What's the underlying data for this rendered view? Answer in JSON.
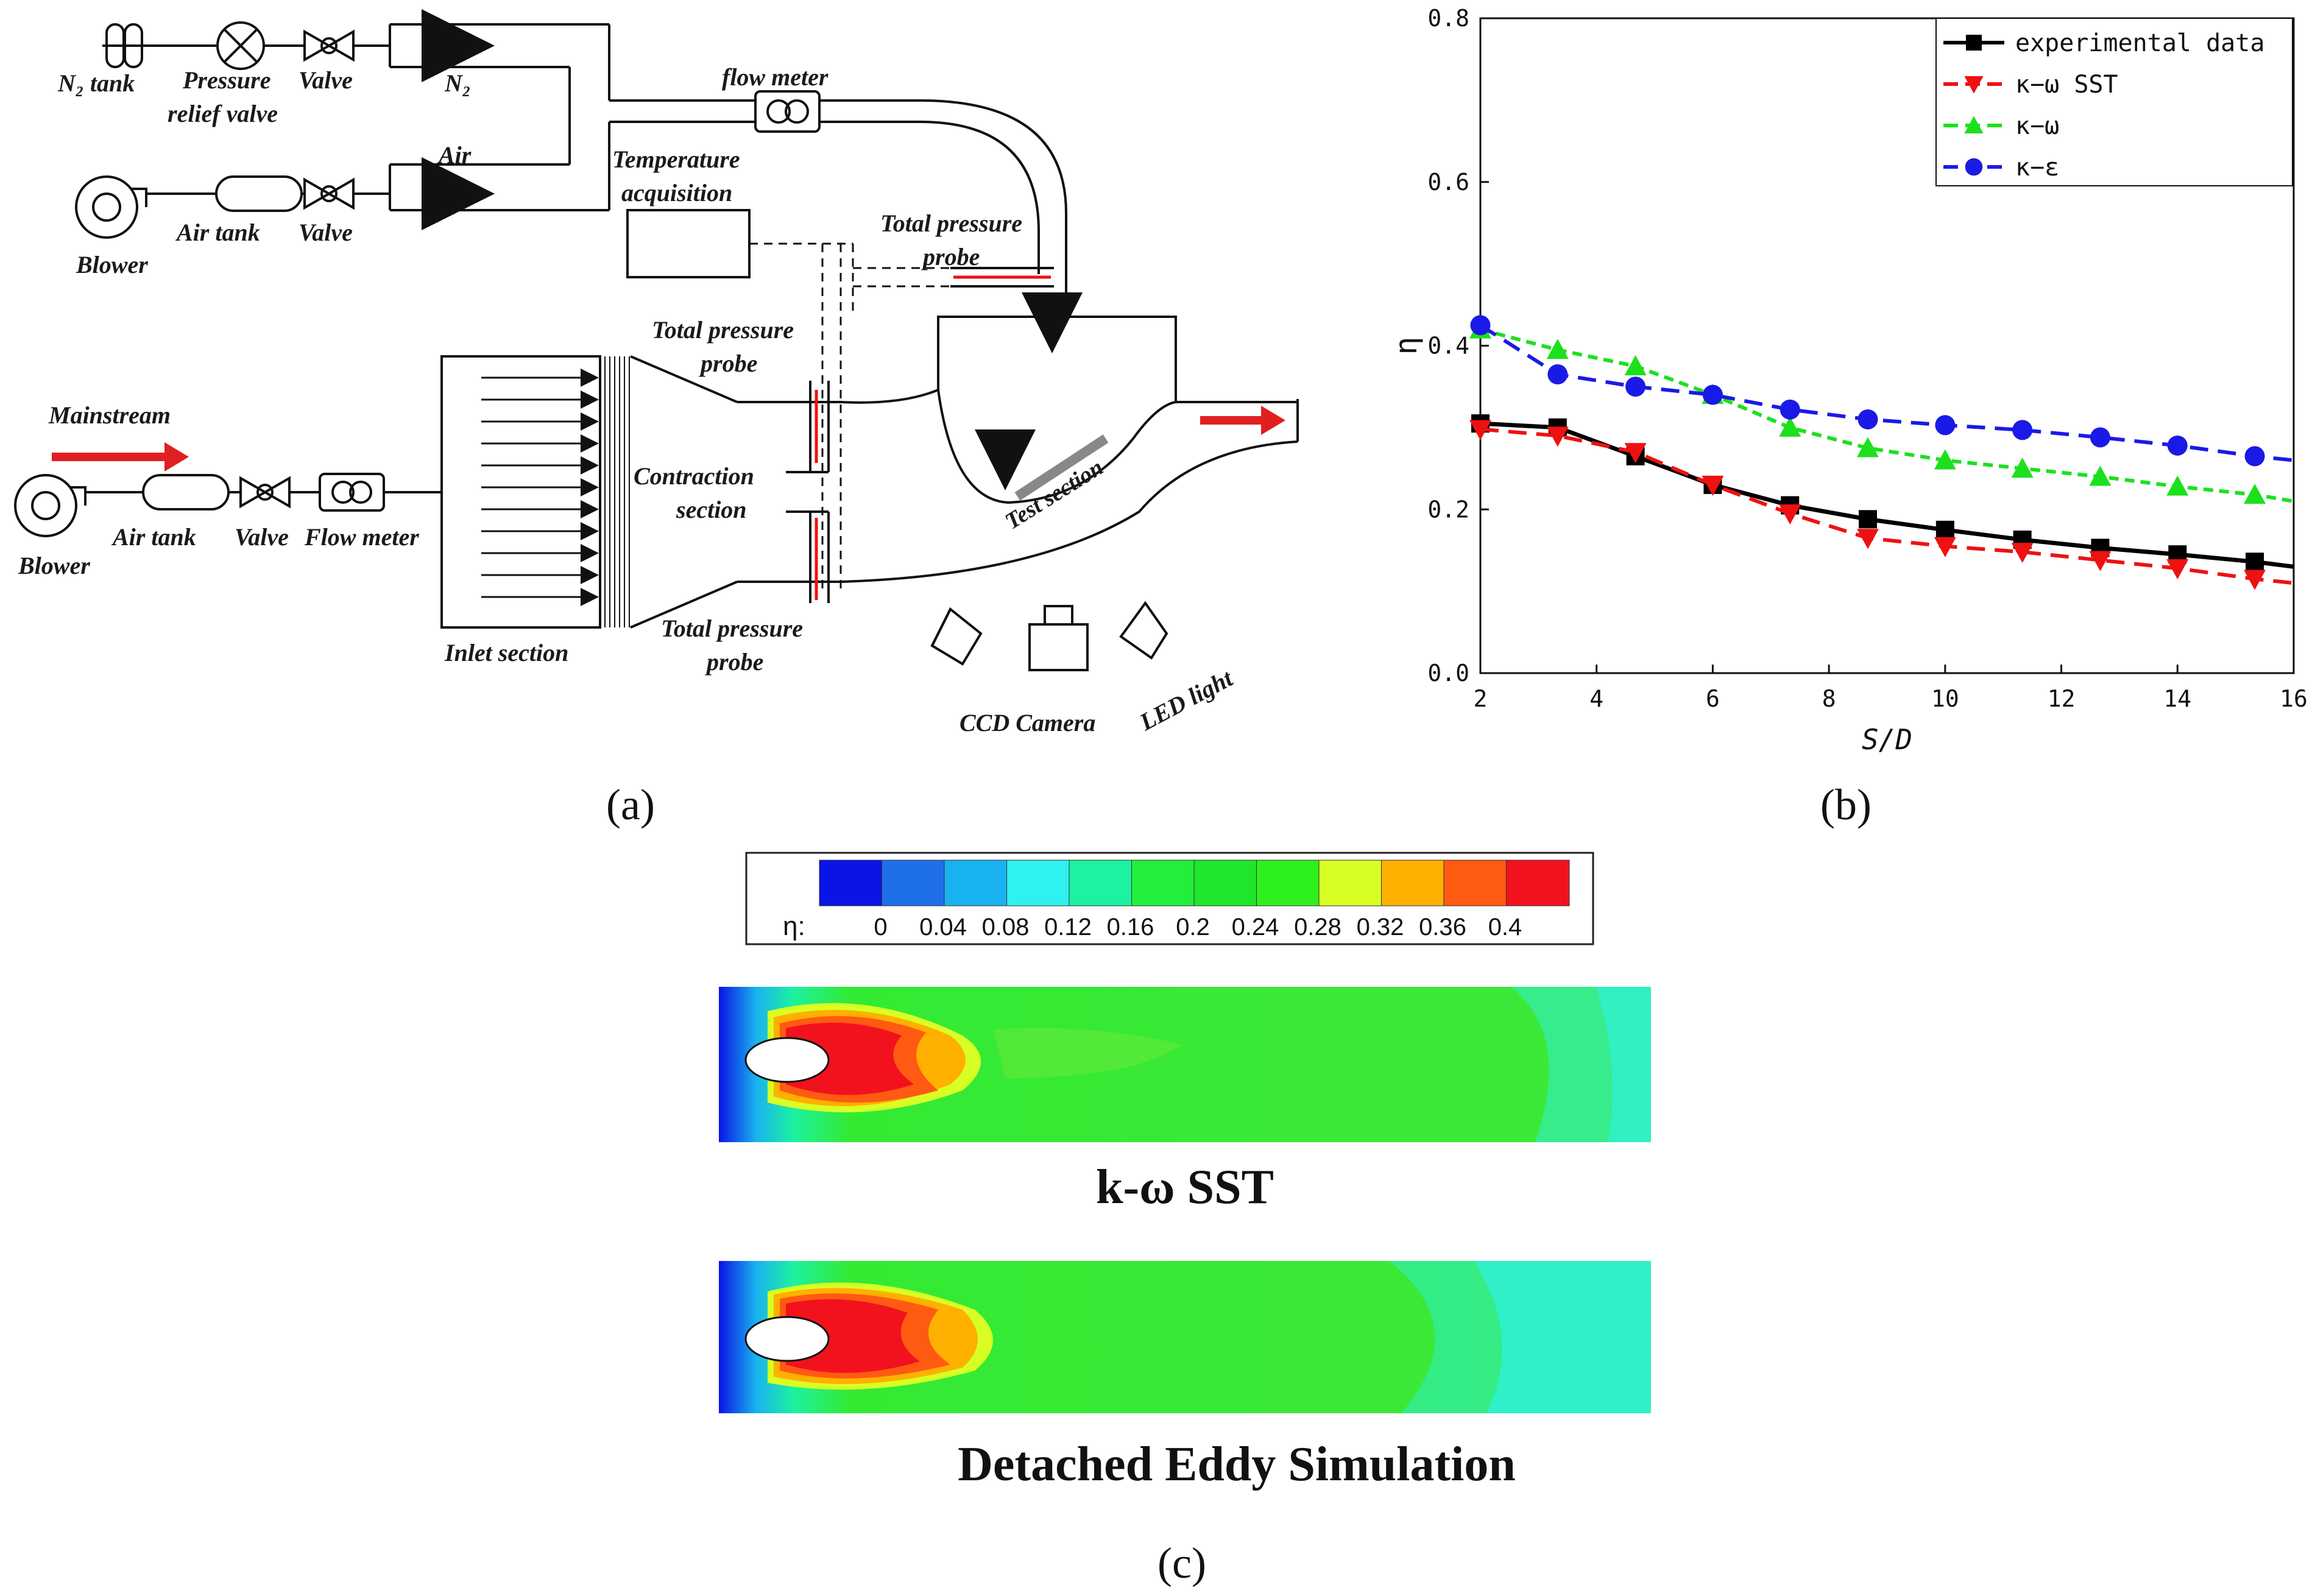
{
  "panel_a": {
    "caption": "(a)",
    "labels": {
      "n2_tank": "N₂ tank",
      "pressure_relief_1": "Pressure",
      "pressure_relief_2": "relief valve",
      "valve": "Valve",
      "n2": "N₂",
      "air": "Air",
      "flow_meter_top": "flow meter",
      "air_tank": "Air tank",
      "blower": "Blower",
      "temp_1": "Temperature",
      "temp_2": "acquisition",
      "tpp_top_1": "Total pressure",
      "tpp_top_2": "probe",
      "tpp_mid_1": "Total pressure",
      "tpp_mid_2": "probe",
      "tpp_bot_1": "Total pressure",
      "tpp_bot_2": "probe",
      "mainstream": "Mainstream",
      "flow_meter": "Flow meter",
      "contraction_1": "Contraction",
      "contraction_2": "section",
      "test_section": "Test section",
      "inlet_section": "Inlet section",
      "ccd_camera": "CCD Camera",
      "led_light": "LED light"
    }
  },
  "panel_b": {
    "caption": "(b)"
  },
  "panel_c": {
    "caption": "(c)",
    "colorbar_label": "η:",
    "colorbar_ticks": [
      "0",
      "0.04",
      "0.08",
      "0.12",
      "0.16",
      "0.2",
      "0.24",
      "0.28",
      "0.32",
      "0.36",
      "0.4"
    ],
    "colorbar_colors": [
      "#0a14e6",
      "#1f6fe9",
      "#19b2f0",
      "#2ff1f0",
      "#1cf2a0",
      "#22ee3c",
      "#1ee62a",
      "#2ef01e",
      "#d8ff24",
      "#ffb000",
      "#ff5a12",
      "#f2121e"
    ],
    "sim_1_label": "k-ω SST",
    "sim_2_label": "Detached Eddy Simulation"
  },
  "chart_data": {
    "type": "line",
    "title": "",
    "xlabel": "S/D",
    "ylabel": "η",
    "xlim": [
      2,
      16
    ],
    "ylim": [
      0.0,
      0.8
    ],
    "xticks": [
      2,
      4,
      6,
      8,
      10,
      12,
      14,
      16
    ],
    "yticks": [
      0.0,
      0.2,
      0.4,
      0.6,
      0.8
    ],
    "legend_position": "top-right",
    "series": [
      {
        "name": "experimental data",
        "color": "#000000",
        "marker": "square",
        "line": "solid",
        "x": [
          2.0,
          3.33,
          4.67,
          6.0,
          7.33,
          8.67,
          10.0,
          11.33,
          12.67,
          14.0,
          15.33,
          16.0
        ],
        "y": [
          0.305,
          0.3,
          0.265,
          0.23,
          0.205,
          0.188,
          0.175,
          0.163,
          0.153,
          0.145,
          0.136,
          0.13
        ]
      },
      {
        "name": "κ−ω SST",
        "color": "#ee1111",
        "marker": "triangle-down",
        "line": "dashed",
        "x": [
          2.0,
          3.33,
          4.67,
          6.0,
          7.33,
          8.67,
          10.0,
          11.33,
          12.67,
          14.0,
          15.33,
          16.0
        ],
        "y": [
          0.298,
          0.29,
          0.27,
          0.23,
          0.195,
          0.165,
          0.155,
          0.148,
          0.138,
          0.128,
          0.115,
          0.11
        ]
      },
      {
        "name": "κ−ω",
        "color": "#1de01d",
        "marker": "triangle-up",
        "line": "dashed",
        "x": [
          2.0,
          3.33,
          4.67,
          6.0,
          7.33,
          8.67,
          10.0,
          11.33,
          12.67,
          14.0,
          15.33,
          16.0
        ],
        "y": [
          0.42,
          0.395,
          0.375,
          0.34,
          0.3,
          0.275,
          0.26,
          0.25,
          0.24,
          0.228,
          0.218,
          0.21
        ]
      },
      {
        "name": "κ−ε",
        "color": "#1a1ae6",
        "marker": "circle",
        "line": "dashed",
        "x": [
          2.0,
          3.33,
          4.67,
          6.0,
          7.33,
          8.67,
          10.0,
          11.33,
          12.67,
          14.0,
          15.33,
          16.0
        ],
        "y": [
          0.425,
          0.365,
          0.35,
          0.34,
          0.322,
          0.31,
          0.303,
          0.297,
          0.288,
          0.278,
          0.265,
          0.26
        ]
      }
    ]
  }
}
